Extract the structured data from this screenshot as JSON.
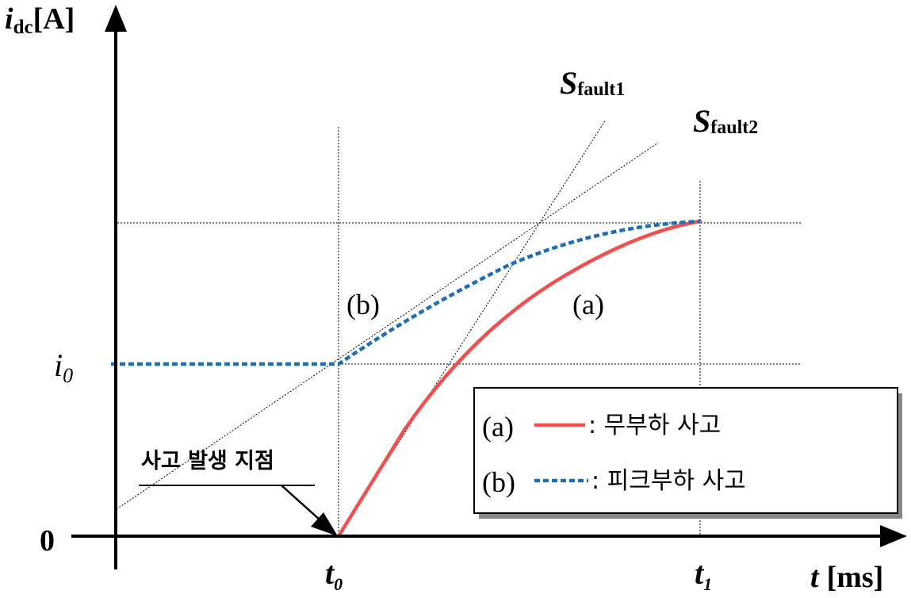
{
  "axes": {
    "y_label_main": "i",
    "y_label_sub": "dc",
    "y_label_unit": "[A]",
    "x_label_main": "t",
    "x_label_unit": "[ms]",
    "origin_label": "0",
    "i0_main": "i",
    "i0_sub": "0",
    "t0_main": "t",
    "t0_sub": "0",
    "t1_main": "t",
    "t1_sub": "1"
  },
  "annotations": {
    "s_fault1_main": "S",
    "s_fault1_sub": "fault1",
    "s_fault2_main": "S",
    "s_fault2_sub": "fault2",
    "curve_a_label": "(a)",
    "curve_b_label": "(b)",
    "fault_point_label": "사고 발생 지점"
  },
  "legend": {
    "a_key": "(a)",
    "a_text": ":  무부하 사고",
    "b_key": "(b)",
    "b_text": ": 피크부하 사고"
  },
  "colors": {
    "curve_a": "#f05050",
    "curve_b": "#1f6fb5",
    "guide": "#000000"
  }
}
